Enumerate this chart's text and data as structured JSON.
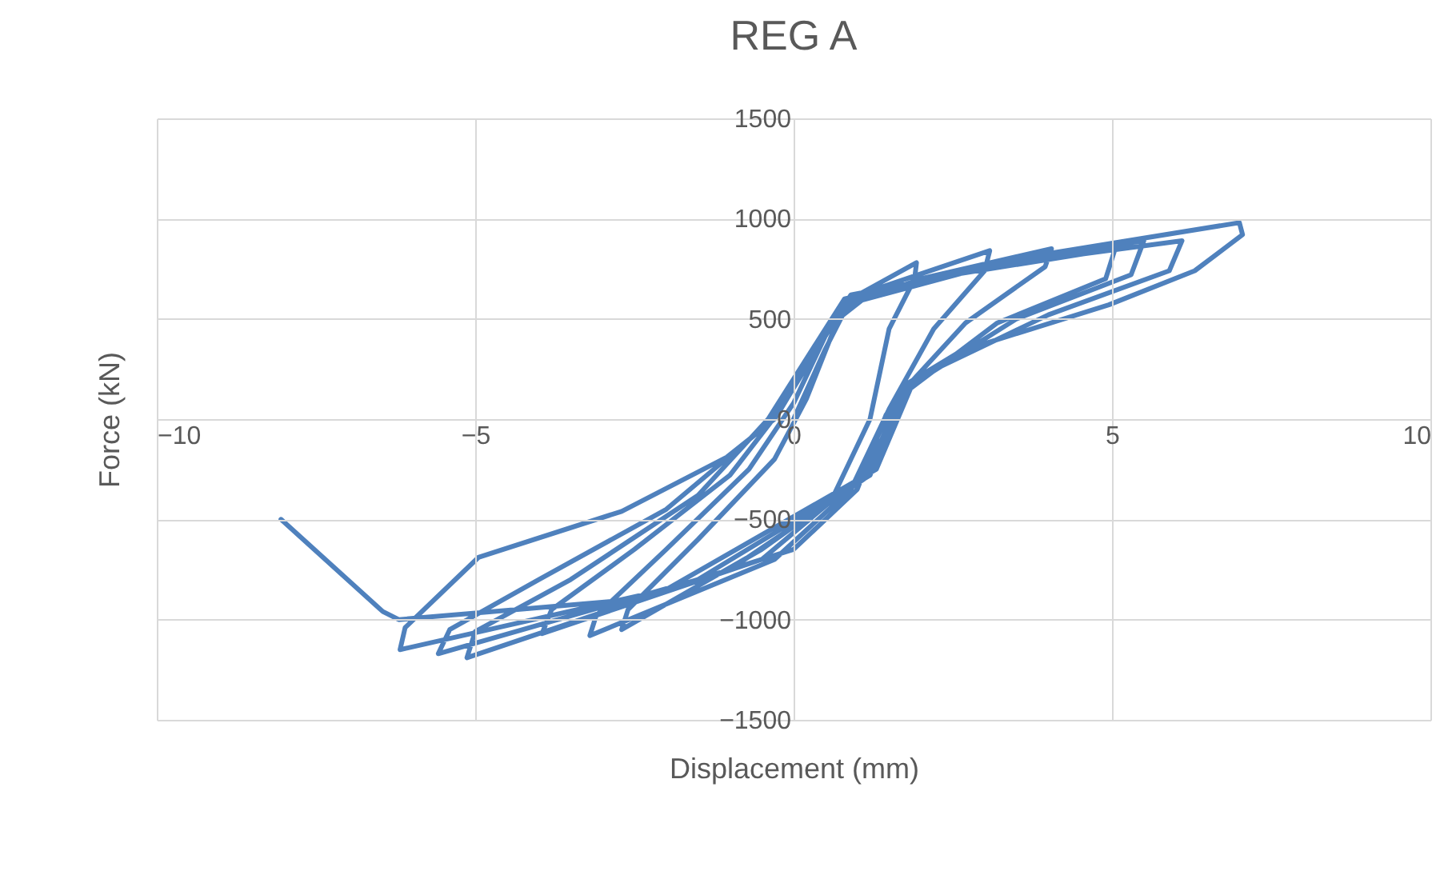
{
  "chart_data": {
    "type": "line",
    "title": "REG A",
    "xlabel": "Displacement (mm)",
    "ylabel": "Force (kN)",
    "xlim": [
      -10,
      10
    ],
    "xticks": [
      -10,
      -5,
      0,
      5,
      10
    ],
    "ylim": [
      -1500,
      1500
    ],
    "yticks": [
      -1500,
      -1000,
      -500,
      0,
      500,
      1000,
      1500
    ],
    "grid": true,
    "marker": "none",
    "line_style": "solid",
    "series": [
      {
        "color": "#4f81bd",
        "x": [
          0,
          0.5,
          0.9,
          1.93,
          1.9,
          1.5,
          1.2,
          0.6,
          -0.5,
          -2.7,
          -2.6,
          -1.5,
          -0.3,
          0.2,
          0.7,
          1.3,
          3.08,
          3.0,
          2.2,
          1.5,
          0.9,
          -0.3,
          -3.2,
          -3.1,
          -2,
          -0.7,
          0,
          0.7,
          2,
          4.05,
          3.95,
          2.7,
          1.6,
          1.0,
          -0.5,
          -3.95,
          -3.8,
          -2.5,
          -1,
          -0.2,
          0.8,
          2.5,
          5.05,
          4.9,
          3.2,
          1.7,
          1.1,
          -1,
          -5.13,
          -5.0,
          -3.5,
          -1.5,
          -0.4,
          0.8,
          3,
          5.5,
          5.3,
          3.5,
          1.8,
          1.2,
          -1.5,
          -5.58,
          -5.4,
          -4,
          -2,
          -0.5,
          0.9,
          3.5,
          6.1,
          5.9,
          4.0,
          1.9,
          1.3,
          -2,
          -6.18,
          -6.1,
          -4.95,
          -2.7,
          -1.05,
          -0.3,
          0.8,
          3.5,
          7.0,
          7.05,
          6.3,
          4.95,
          2.63,
          1.8,
          1.45,
          1.0,
          0,
          -2.5,
          -6.2,
          -6.45,
          -8.05
        ],
        "values": [
          0,
          350,
          600,
          780,
          700,
          450,
          0,
          -400,
          -650,
          -1050,
          -950,
          -600,
          -200,
          100,
          500,
          650,
          840,
          740,
          450,
          50,
          -350,
          -700,
          -1080,
          -980,
          -650,
          -250,
          80,
          550,
          700,
          850,
          760,
          480,
          100,
          -300,
          -700,
          -1070,
          -950,
          -650,
          -280,
          50,
          580,
          720,
          850,
          700,
          480,
          120,
          -300,
          -750,
          -1190,
          -1060,
          -800,
          -380,
          0,
          600,
          760,
          890,
          720,
          500,
          160,
          -280,
          -800,
          -1170,
          -1050,
          -800,
          -450,
          -50,
          620,
          780,
          890,
          740,
          520,
          200,
          -250,
          -850,
          -1150,
          -1040,
          -690,
          -460,
          -190,
          0,
          570,
          800,
          980,
          920,
          740,
          570,
          340,
          180,
          20,
          -350,
          -650,
          -900,
          -1000,
          -960,
          -500
        ]
      }
    ]
  }
}
